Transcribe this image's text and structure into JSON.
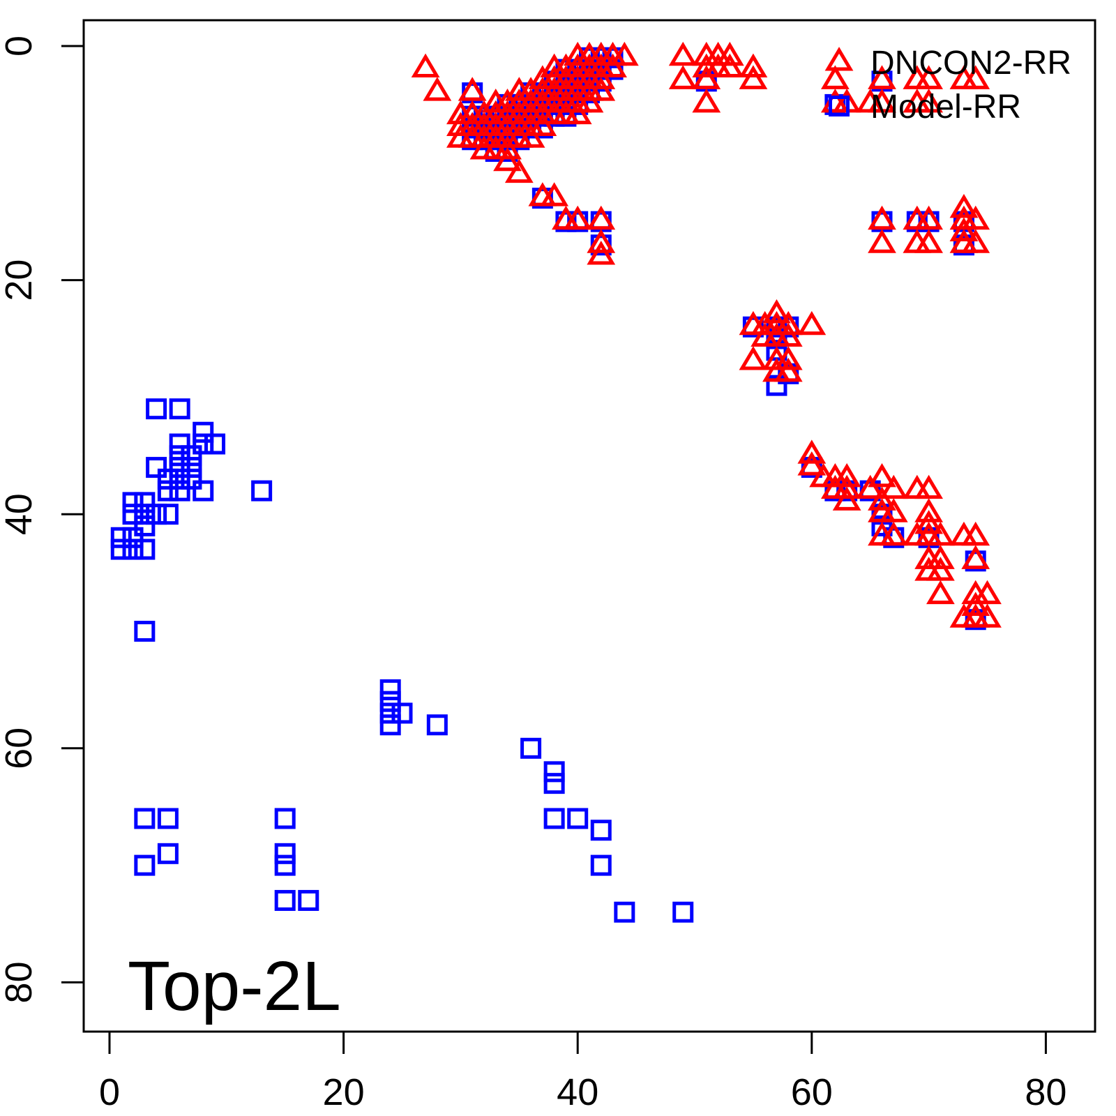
{
  "figure": {
    "background": "#FFFFFF",
    "frame_color": "#000000"
  },
  "chart_data": {
    "type": "scatter",
    "title": "",
    "xlabel": "",
    "ylabel": "",
    "annotation": "Top-2L",
    "x_ticks": [
      "0",
      "20",
      "40",
      "60",
      "80"
    ],
    "y_ticks": [
      "0",
      "20",
      "40",
      "60",
      "80"
    ],
    "x_tick_values": [
      0,
      20,
      40,
      60,
      80
    ],
    "y_tick_values": [
      0,
      20,
      40,
      60,
      80
    ],
    "xlim": [
      -2.2,
      84.2
    ],
    "ylim": [
      84.2,
      -2.2
    ],
    "y_axis_reversed": true,
    "grid": "off",
    "legend_position": "top-right",
    "series": [
      {
        "name": "DNCON2-RR",
        "marker": "triangle",
        "color": "#FF0000",
        "points": [
          [
            27,
            2
          ],
          [
            28,
            4
          ],
          [
            40,
            1
          ],
          [
            41,
            1
          ],
          [
            42,
            1
          ],
          [
            43,
            1
          ],
          [
            44,
            1
          ],
          [
            38,
            2
          ],
          [
            39,
            2
          ],
          [
            40,
            2
          ],
          [
            41,
            2
          ],
          [
            42,
            2
          ],
          [
            43,
            2
          ],
          [
            37,
            3
          ],
          [
            38,
            3
          ],
          [
            39,
            3
          ],
          [
            40,
            3
          ],
          [
            41,
            3
          ],
          [
            42,
            3
          ],
          [
            31,
            4
          ],
          [
            35,
            4
          ],
          [
            36,
            4
          ],
          [
            37,
            4
          ],
          [
            38,
            4
          ],
          [
            39,
            4
          ],
          [
            40,
            4
          ],
          [
            41,
            4
          ],
          [
            42,
            4
          ],
          [
            33,
            5
          ],
          [
            34,
            5
          ],
          [
            35,
            5
          ],
          [
            36,
            5
          ],
          [
            37,
            5
          ],
          [
            38,
            5
          ],
          [
            39,
            5
          ],
          [
            40,
            5
          ],
          [
            41,
            5
          ],
          [
            30,
            6
          ],
          [
            31,
            6
          ],
          [
            32,
            6
          ],
          [
            33,
            6
          ],
          [
            34,
            6
          ],
          [
            35,
            6
          ],
          [
            36,
            6
          ],
          [
            37,
            6
          ],
          [
            38,
            6
          ],
          [
            39,
            6
          ],
          [
            40,
            6
          ],
          [
            30,
            7
          ],
          [
            31,
            7
          ],
          [
            32,
            7
          ],
          [
            33,
            7
          ],
          [
            34,
            7
          ],
          [
            35,
            7
          ],
          [
            36,
            7
          ],
          [
            37,
            7
          ],
          [
            30,
            8
          ],
          [
            31,
            8
          ],
          [
            32,
            8
          ],
          [
            33,
            8
          ],
          [
            34,
            8
          ],
          [
            35,
            8
          ],
          [
            36,
            8
          ],
          [
            32,
            9
          ],
          [
            33,
            9
          ],
          [
            34,
            9
          ],
          [
            34,
            10
          ],
          [
            35,
            11
          ],
          [
            37,
            13
          ],
          [
            38,
            13
          ],
          [
            39,
            15
          ],
          [
            40,
            15
          ],
          [
            42,
            15
          ],
          [
            42,
            17
          ],
          [
            42,
            18
          ],
          [
            49,
            1
          ],
          [
            51,
            1
          ],
          [
            52,
            1
          ],
          [
            53,
            1
          ],
          [
            51,
            2
          ],
          [
            52,
            2
          ],
          [
            53,
            2
          ],
          [
            55,
            2
          ],
          [
            49,
            3
          ],
          [
            51,
            3
          ],
          [
            55,
            3
          ],
          [
            51,
            5
          ],
          [
            62,
            3
          ],
          [
            62,
            5
          ],
          [
            63,
            5
          ],
          [
            66,
            3
          ],
          [
            65,
            5
          ],
          [
            66,
            5
          ],
          [
            69,
            3
          ],
          [
            70,
            3
          ],
          [
            69,
            5
          ],
          [
            70,
            5
          ],
          [
            73,
            3
          ],
          [
            74,
            3
          ],
          [
            66,
            15
          ],
          [
            69,
            15
          ],
          [
            70,
            15
          ],
          [
            73,
            14
          ],
          [
            73,
            15
          ],
          [
            74,
            15
          ],
          [
            66,
            17
          ],
          [
            69,
            17
          ],
          [
            70,
            17
          ],
          [
            73,
            16
          ],
          [
            73,
            17
          ],
          [
            74,
            17
          ],
          [
            57,
            23
          ],
          [
            55,
            24
          ],
          [
            56,
            24
          ],
          [
            57,
            24
          ],
          [
            58,
            24
          ],
          [
            60,
            24
          ],
          [
            56,
            25
          ],
          [
            57,
            25
          ],
          [
            58,
            25
          ],
          [
            55,
            27
          ],
          [
            57,
            27
          ],
          [
            58,
            27
          ],
          [
            57,
            28
          ],
          [
            58,
            28
          ],
          [
            60,
            35
          ],
          [
            60,
            36
          ],
          [
            61,
            37
          ],
          [
            62,
            37
          ],
          [
            63,
            37
          ],
          [
            66,
            37
          ],
          [
            62,
            38
          ],
          [
            63,
            38
          ],
          [
            65,
            38
          ],
          [
            67,
            38
          ],
          [
            69,
            38
          ],
          [
            70,
            38
          ],
          [
            63,
            39
          ],
          [
            66,
            39
          ],
          [
            66,
            40
          ],
          [
            67,
            40
          ],
          [
            70,
            40
          ],
          [
            70,
            41
          ],
          [
            66,
            42
          ],
          [
            67,
            42
          ],
          [
            69,
            42
          ],
          [
            70,
            42
          ],
          [
            71,
            42
          ],
          [
            73,
            42
          ],
          [
            74,
            42
          ],
          [
            70,
            44
          ],
          [
            71,
            44
          ],
          [
            74,
            44
          ],
          [
            70,
            45
          ],
          [
            71,
            45
          ],
          [
            71,
            47
          ],
          [
            74,
            47
          ],
          [
            75,
            47
          ],
          [
            74,
            48
          ],
          [
            73,
            49
          ],
          [
            74,
            49
          ],
          [
            75,
            49
          ]
        ]
      },
      {
        "name": "Model-RR",
        "marker": "square",
        "color": "#0000FF",
        "points": [
          [
            41,
            1
          ],
          [
            42,
            1
          ],
          [
            43,
            1
          ],
          [
            39,
            2
          ],
          [
            40,
            2
          ],
          [
            41,
            2
          ],
          [
            42,
            2
          ],
          [
            43,
            2
          ],
          [
            38,
            3
          ],
          [
            39,
            3
          ],
          [
            40,
            3
          ],
          [
            41,
            3
          ],
          [
            42,
            3
          ],
          [
            31,
            4
          ],
          [
            36,
            4
          ],
          [
            37,
            4
          ],
          [
            38,
            4
          ],
          [
            39,
            4
          ],
          [
            40,
            4
          ],
          [
            41,
            4
          ],
          [
            34,
            5
          ],
          [
            35,
            5
          ],
          [
            36,
            5
          ],
          [
            37,
            5
          ],
          [
            38,
            5
          ],
          [
            39,
            5
          ],
          [
            40,
            5
          ],
          [
            31,
            6
          ],
          [
            32,
            6
          ],
          [
            33,
            6
          ],
          [
            34,
            6
          ],
          [
            35,
            6
          ],
          [
            36,
            6
          ],
          [
            37,
            6
          ],
          [
            38,
            6
          ],
          [
            39,
            6
          ],
          [
            31,
            7
          ],
          [
            32,
            7
          ],
          [
            33,
            7
          ],
          [
            34,
            7
          ],
          [
            35,
            7
          ],
          [
            36,
            7
          ],
          [
            37,
            7
          ],
          [
            31,
            8
          ],
          [
            32,
            8
          ],
          [
            33,
            8
          ],
          [
            34,
            8
          ],
          [
            35,
            8
          ],
          [
            33,
            9
          ],
          [
            34,
            9
          ],
          [
            37,
            13
          ],
          [
            39,
            15
          ],
          [
            40,
            15
          ],
          [
            42,
            15
          ],
          [
            42,
            17
          ],
          [
            51,
            3
          ],
          [
            66,
            3
          ],
          [
            62,
            5
          ],
          [
            66,
            15
          ],
          [
            69,
            15
          ],
          [
            70,
            15
          ],
          [
            73,
            15
          ],
          [
            73,
            17
          ],
          [
            55,
            24
          ],
          [
            57,
            24
          ],
          [
            58,
            24
          ],
          [
            57,
            25
          ],
          [
            57,
            26
          ],
          [
            58,
            28
          ],
          [
            57,
            29
          ],
          [
            60,
            36
          ],
          [
            62,
            38
          ],
          [
            63,
            38
          ],
          [
            65,
            38
          ],
          [
            66,
            40
          ],
          [
            66,
            41
          ],
          [
            67,
            42
          ],
          [
            70,
            42
          ],
          [
            74,
            44
          ],
          [
            74,
            49
          ],
          [
            4,
            31
          ],
          [
            6,
            31
          ],
          [
            8,
            33
          ],
          [
            6,
            34
          ],
          [
            8,
            34
          ],
          [
            9,
            34
          ],
          [
            6,
            35
          ],
          [
            7,
            35
          ],
          [
            4,
            36
          ],
          [
            6,
            36
          ],
          [
            7,
            36
          ],
          [
            5,
            37
          ],
          [
            6,
            37
          ],
          [
            7,
            37
          ],
          [
            5,
            38
          ],
          [
            6,
            38
          ],
          [
            8,
            38
          ],
          [
            13,
            38
          ],
          [
            2,
            39
          ],
          [
            3,
            39
          ],
          [
            2,
            40
          ],
          [
            3,
            40
          ],
          [
            4,
            40
          ],
          [
            5,
            40
          ],
          [
            3,
            41
          ],
          [
            1,
            42
          ],
          [
            2,
            42
          ],
          [
            1,
            43
          ],
          [
            2,
            43
          ],
          [
            3,
            43
          ],
          [
            3,
            50
          ],
          [
            24,
            55
          ],
          [
            24,
            56
          ],
          [
            24,
            57
          ],
          [
            24,
            58
          ],
          [
            25,
            57
          ],
          [
            28,
            58
          ],
          [
            36,
            60
          ],
          [
            38,
            62
          ],
          [
            38,
            63
          ],
          [
            38,
            66
          ],
          [
            40,
            66
          ],
          [
            42,
            67
          ],
          [
            42,
            70
          ],
          [
            44,
            74
          ],
          [
            49,
            74
          ],
          [
            3,
            66
          ],
          [
            5,
            66
          ],
          [
            5,
            69
          ],
          [
            3,
            70
          ],
          [
            15,
            66
          ],
          [
            15,
            69
          ],
          [
            15,
            70
          ],
          [
            15,
            73
          ],
          [
            17,
            73
          ]
        ]
      }
    ]
  }
}
